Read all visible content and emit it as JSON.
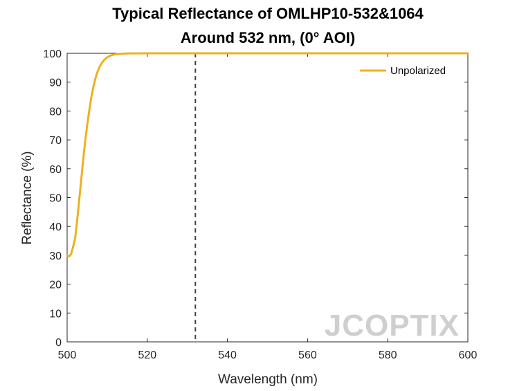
{
  "chart_data": {
    "type": "line",
    "title_lines": [
      "Typical Reflectance of OMLHP10-532&1064",
      "Around 532 nm, (0° AOI)"
    ],
    "xlabel": "Wavelength (nm)",
    "ylabel": "Reflectance (%)",
    "xlim": [
      500,
      600
    ],
    "ylim": [
      0,
      100
    ],
    "xticks": [
      500,
      520,
      540,
      560,
      580,
      600
    ],
    "yticks": [
      0,
      10,
      20,
      30,
      40,
      50,
      60,
      70,
      80,
      90,
      100
    ],
    "grid": false,
    "legend_position": "top-right",
    "reference_line": {
      "x": 532,
      "style": "dashed",
      "color": "#404040"
    },
    "series": [
      {
        "name": "Unpolarized",
        "color": "#EDB120",
        "x": [
          500,
          500.5,
          501,
          501.5,
          502,
          502.5,
          503,
          503.5,
          504,
          504.5,
          505,
          505.5,
          506,
          506.5,
          507,
          507.5,
          508,
          508.5,
          509,
          509.5,
          510,
          510.5,
          511,
          511.5,
          512,
          513,
          514,
          515,
          516,
          518,
          520,
          525,
          530,
          540,
          550,
          560,
          570,
          580,
          590,
          600
        ],
        "y": [
          30.0,
          29.6,
          30.5,
          33.0,
          36.0,
          42.0,
          49.0,
          56.0,
          63.0,
          69.5,
          75.0,
          80.0,
          84.5,
          88.0,
          91.0,
          93.3,
          95.0,
          96.3,
          97.3,
          98.0,
          98.6,
          99.0,
          99.3,
          99.5,
          99.65,
          99.8,
          99.88,
          99.93,
          99.96,
          99.98,
          99.99,
          100,
          100,
          100,
          100,
          100,
          100,
          100,
          100,
          100
        ]
      }
    ]
  },
  "watermark": "JCOPTIX"
}
